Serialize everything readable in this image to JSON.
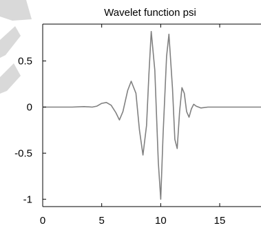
{
  "chart_data": {
    "type": "line",
    "title": "Wavelet function psi",
    "xlabel": "",
    "ylabel": "",
    "xlim": [
      0,
      18.5
    ],
    "ylim": [
      -1.08,
      0.9
    ],
    "x_ticks": [
      0,
      5,
      10,
      15
    ],
    "y_ticks": [
      -1,
      -0.5,
      0,
      0.5
    ],
    "x_tick_labels": [
      "0",
      "5",
      "10",
      "15"
    ],
    "y_tick_labels": [
      "-1",
      "-0.5",
      "0",
      "0.5"
    ],
    "grid": false,
    "legend": "none",
    "series": [
      {
        "color": "#808080",
        "points": [
          [
            0,
            0
          ],
          [
            2.5,
            0
          ],
          [
            3.5,
            0.005
          ],
          [
            4.2,
            0.0
          ],
          [
            4.6,
            0.01
          ],
          [
            5.0,
            0.04
          ],
          [
            5.4,
            0.05
          ],
          [
            5.8,
            0.02
          ],
          [
            6.2,
            -0.06
          ],
          [
            6.5,
            -0.14
          ],
          [
            6.8,
            -0.05
          ],
          [
            7.2,
            0.18
          ],
          [
            7.5,
            0.28
          ],
          [
            7.9,
            0.15
          ],
          [
            8.2,
            -0.25
          ],
          [
            8.5,
            -0.52
          ],
          [
            8.8,
            -0.2
          ],
          [
            9.0,
            0.35
          ],
          [
            9.2,
            0.82
          ],
          [
            9.5,
            0.4
          ],
          [
            9.8,
            -0.6
          ],
          [
            10.0,
            -1.0
          ],
          [
            10.2,
            -0.3
          ],
          [
            10.5,
            0.55
          ],
          [
            10.7,
            0.79
          ],
          [
            11.0,
            0.2
          ],
          [
            11.2,
            -0.35
          ],
          [
            11.4,
            -0.45
          ],
          [
            11.6,
            -0.05
          ],
          [
            11.8,
            0.21
          ],
          [
            12.0,
            0.15
          ],
          [
            12.2,
            -0.05
          ],
          [
            12.4,
            -0.11
          ],
          [
            12.6,
            -0.02
          ],
          [
            12.8,
            0.03
          ],
          [
            13.0,
            0.01
          ],
          [
            13.4,
            -0.01
          ],
          [
            14.0,
            0
          ],
          [
            18.5,
            0
          ]
        ]
      }
    ],
    "colors": {
      "line": "#808080",
      "axis": "#000000",
      "decor": "#d9d9d9"
    }
  }
}
